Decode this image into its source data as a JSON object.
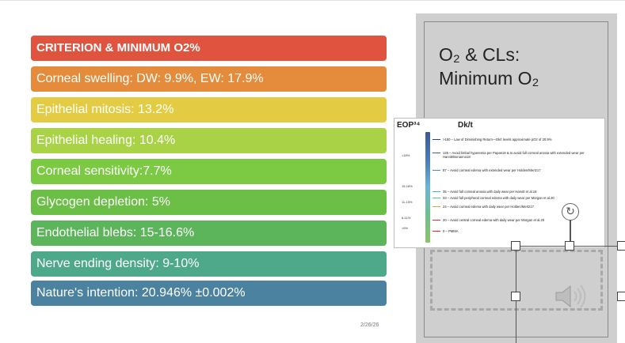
{
  "criteria": [
    {
      "label": "CRITERION & MINIMUM O2%",
      "color": "#e0533e"
    },
    {
      "label": "Corneal swelling: DW: 9.9%, EW: 17.9%",
      "color": "#e48c3c"
    },
    {
      "label": "Epithelial mitosis: 13.2%",
      "color": "#e3cc44"
    },
    {
      "label": "Epithelial healing: 10.4%",
      "color": "#a9d246"
    },
    {
      "label": "Corneal sensitivity:7.7%",
      "color": "#7cca44"
    },
    {
      "label": "Glycogen depletion: 5%",
      "color": "#6bbf47"
    },
    {
      "label": "Endothelial blebs: 15-16.6%",
      "color": "#5cb55a"
    },
    {
      "label": "Nerve ending density: 9-10%",
      "color": "#4ea88a"
    },
    {
      "label": "Nature's intention: 20.946%  ±0.002%",
      "color": "#4a82a0"
    }
  ],
  "footer_date": "2/26/26",
  "panel": {
    "title_line1": "O₂ & CLs:",
    "title_line2": "Minimum O₂"
  },
  "chart_image": {
    "left_header": "EOP³⁴",
    "right_header": "Dk/t",
    "ranges": [
      ">18%",
      "15-18%",
      "11-15%",
      "6-11%",
      "<6%"
    ],
    "entries": [
      {
        "text": ">150 – Law of Diminishing Return—Dk/t levels approximate pO2 of 20.9%",
        "color": "#2b3f7a"
      },
      {
        "text": "125 – Avoid limbal hyperemia per Papas19 & to avoid full corneal anoxia with extended wear per Harvitt/Bonanno18",
        "color": "#3c5aa6"
      },
      {
        "text": "87 – Avoid corneal edema with extended wear per Holden/Mertz17",
        "color": "#4f88d0"
      },
      {
        "text": "35 – Avoid full corneal anoxia with daily wear per Harvitt et al.18",
        "color": "#5aa8df"
      },
      {
        "text": "33 – Avoid full peripheral corneal edema with daily wear per Morgan et al.20",
        "color": "#5fbf8a"
      },
      {
        "text": "24 – Avoid corneal edema with daily wear per Holden/Mertz17",
        "color": "#e6a23a"
      },
      {
        "text": "20 – Avoid central corneal edema with daily wear per Morgan et al.20",
        "color": "#cc3b2e"
      },
      {
        "text": "0 – PMMA",
        "color": "#d22b2b"
      }
    ]
  },
  "icons": {
    "rotate": "rotate-handle-icon",
    "audio": "speaker-icon"
  }
}
